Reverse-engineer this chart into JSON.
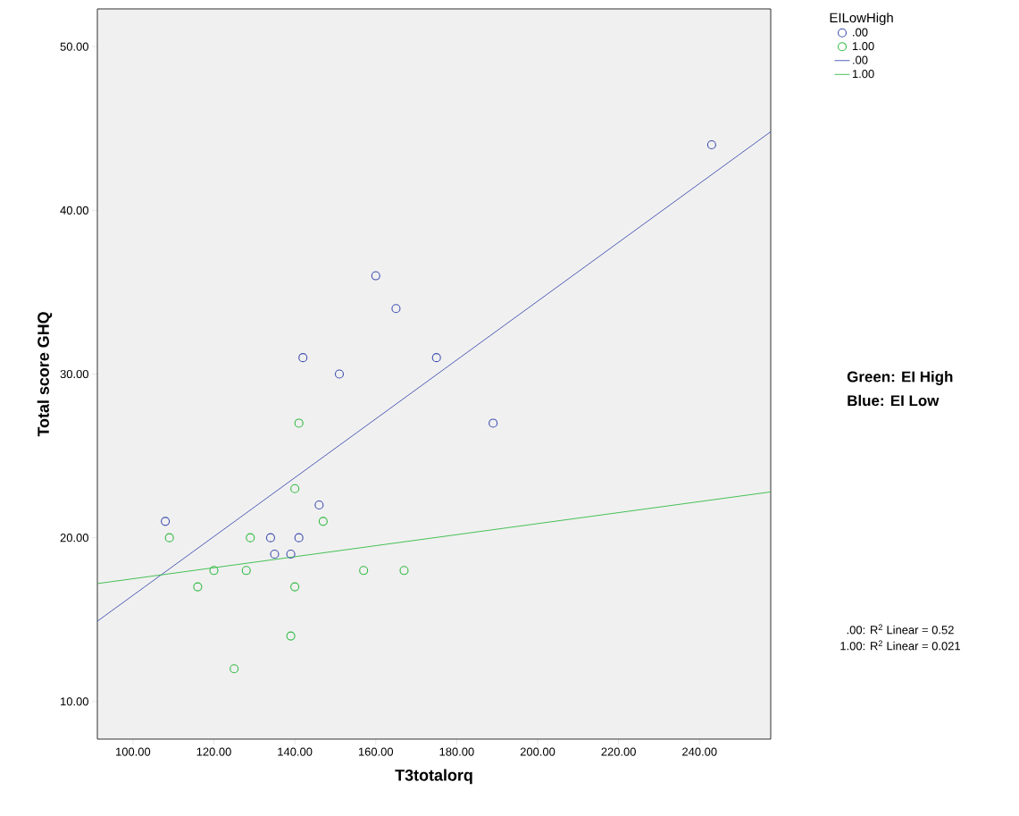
{
  "chart_data": {
    "type": "scatter",
    "xlabel": "T3totalorq",
    "ylabel": "Total score GHQ",
    "legend_title": "EILowHigh",
    "legend": "top right",
    "grid": false,
    "xlim": [
      91.2,
      257.6
    ],
    "ylim": [
      7.7,
      52.3
    ],
    "xticks": [
      {
        "value": 100,
        "label": "100.00"
      },
      {
        "value": 120,
        "label": "120.00"
      },
      {
        "value": 140,
        "label": "140.00"
      },
      {
        "value": 160,
        "label": "160.00"
      },
      {
        "value": 180,
        "label": "180.00"
      },
      {
        "value": 200,
        "label": "200.00"
      },
      {
        "value": 220,
        "label": "220.00"
      },
      {
        "value": 240,
        "label": "240.00"
      }
    ],
    "yticks": [
      {
        "value": 10,
        "label": "10.00"
      },
      {
        "value": 20,
        "label": "20.00"
      },
      {
        "value": 30,
        "label": "30.00"
      },
      {
        "value": 40,
        "label": "40.00"
      },
      {
        "value": 50,
        "label": "50.00"
      }
    ],
    "series": [
      {
        "name": ".00",
        "marker": "circle",
        "color": "#4050b0",
        "x": [
          108,
          134,
          135,
          139,
          141,
          142,
          146,
          151,
          160,
          165,
          175,
          189,
          243
        ],
        "values": [
          21,
          20,
          19,
          19,
          20,
          31,
          22,
          30,
          36,
          34,
          31,
          27,
          44
        ]
      },
      {
        "name": "1.00",
        "marker": "circle",
        "color": "#33bb44",
        "x": [
          109,
          116,
          120,
          125,
          128,
          129,
          139,
          140,
          140,
          141,
          147,
          157,
          167
        ],
        "values": [
          20,
          17,
          18,
          12,
          18,
          20,
          14,
          17,
          23,
          27,
          21,
          18,
          18
        ]
      },
      {
        "name": ".00",
        "type": "line",
        "marker": "none",
        "line_style": "solid",
        "color": "#4050b0",
        "x": [
          91.2,
          257.6
        ],
        "values": [
          14.9,
          44.8
        ]
      },
      {
        "name": "1.00",
        "type": "line",
        "marker": "none",
        "line_style": "solid",
        "color": "#33bb44",
        "x": [
          91.2,
          257.6
        ],
        "values": [
          17.2,
          22.8
        ]
      }
    ],
    "annotations": [
      "Green: EI High",
      "Blue: EI Low",
      ".00: R$^{2}$ Linear = 0.52",
      "1.00: R$^{2}$ Linear = 0.021"
    ]
  }
}
